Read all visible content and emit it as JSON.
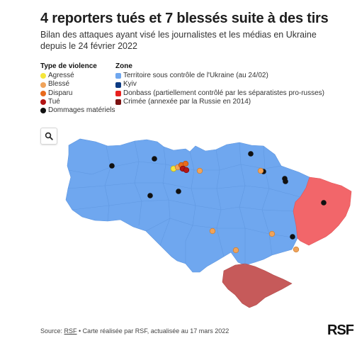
{
  "title": "4 reporters tués et 7 blessés suite à des tirs",
  "subtitle": "Bilan des attaques ayant visé les journalistes et les médias en Ukraine depuis le 24 février 2022",
  "legend": {
    "type_heading": "Type de violence",
    "types": [
      {
        "label": "Agressé",
        "color": "#f5e63b"
      },
      {
        "label": "Blessé",
        "color": "#f0a35a"
      },
      {
        "label": "Disparu",
        "color": "#e86a1c"
      },
      {
        "label": "Tué",
        "color": "#b31515"
      },
      {
        "label": "Dommages matériels",
        "color": "#111111"
      }
    ],
    "zone_heading": "Zone",
    "zones": [
      {
        "label": "Territoire sous contrôle de l'Ukraine (au 24/02)",
        "color": "#6fa7ef"
      },
      {
        "label": "Kyiv",
        "color": "#0b3a82"
      },
      {
        "label": "Donbass (partiellement contrôlé par les séparatistes pro-russes)",
        "color": "#e8201e"
      },
      {
        "label": "Crimée (annexée par la Russie en 2014)",
        "color": "#7b1212"
      }
    ]
  },
  "map": {
    "regions": [
      {
        "name": "Territoire sous contrôle de l'Ukraine",
        "color": "#6fa7ef"
      },
      {
        "name": "Donbass",
        "color": "#f2666a"
      },
      {
        "name": "Crimée",
        "color": "#c65a5a"
      }
    ],
    "search_icon": "search-icon"
  },
  "footer": {
    "source_label": "Source: ",
    "source_link": "RSF",
    "source_rest": " • Carte réalisée par RSF, actualisée au 17 mars 2022"
  },
  "logo": "RSF"
}
